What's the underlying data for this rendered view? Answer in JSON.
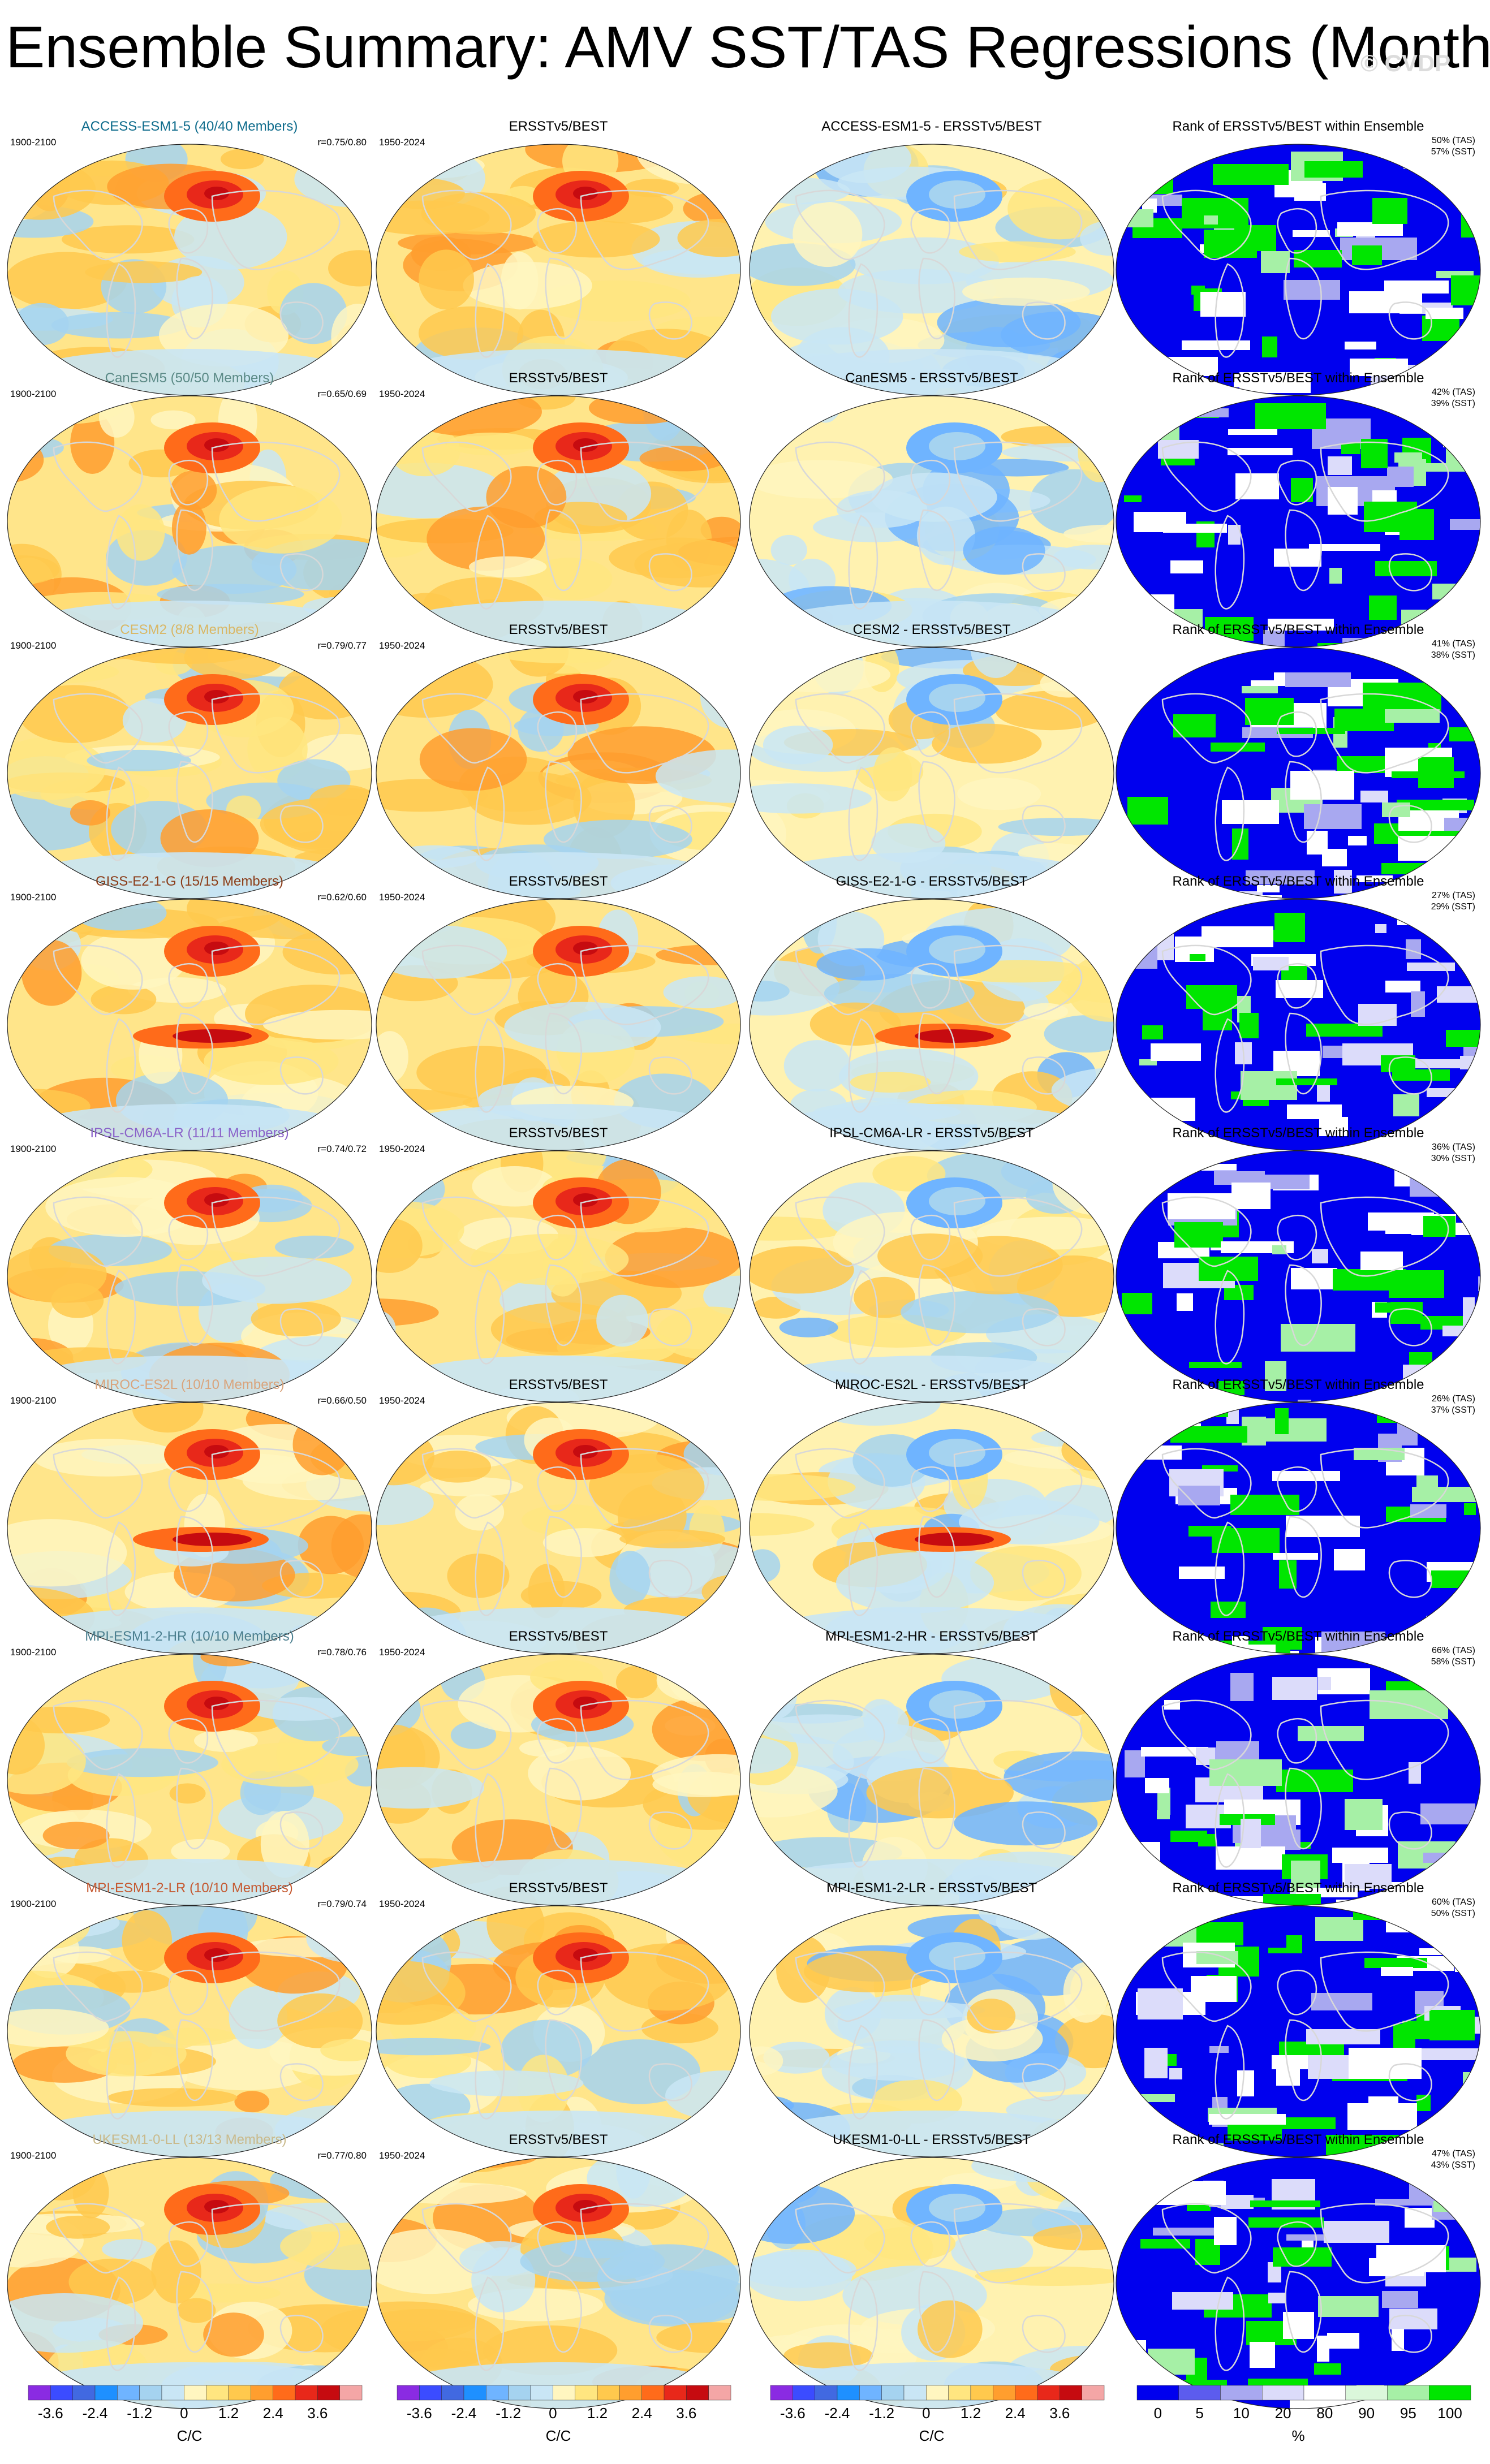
{
  "title": "Ensemble Summary: AMV SST/TAS Regressions (Monthly)",
  "watermark": "© CVDP",
  "colors": {
    "diverging": [
      "#8a2be2",
      "#3b4cff",
      "#4169e1",
      "#1e90ff",
      "#6fb4ff",
      "#a5d3f0",
      "#c9e6f5",
      "#fff6c0",
      "#ffe680",
      "#ffc94d",
      "#ff9e2e",
      "#ff6b1a",
      "#e8281a",
      "#c60b10",
      "#f4a6a6"
    ],
    "rank": [
      "#0000ee",
      "#5c5cee",
      "#a8a8f0",
      "#dcdcfa",
      "#ffffff",
      "#dbf7db",
      "#a6f0a6",
      "#00e600"
    ],
    "model_label_colors": [
      "#0f6c8c",
      "#5b8a86",
      "#d9b765",
      "#8b3d1a",
      "#8a63c9",
      "#d9a47c",
      "#4b7f8f",
      "#c55a32",
      "#c9b98a"
    ]
  },
  "rows": [
    {
      "model_label": "ACCESS-ESM1-5 (40/40 Members)",
      "model_years": "1900-2100",
      "r": "r=0.75/0.80",
      "obs_label": "ERSSTv5/BEST",
      "obs_years": "1950-2024",
      "diff_label": "ACCESS-ESM1-5 - ERSSTv5/BEST",
      "rank_label": "Rank of ERSSTv5/BEST within Ensemble",
      "rank_tas": "50% (TAS)",
      "rank_sst": "57% (SST)"
    },
    {
      "model_label": "CanESM5 (50/50 Members)",
      "model_years": "1900-2100",
      "r": "r=0.65/0.69",
      "obs_label": "ERSSTv5/BEST",
      "obs_years": "1950-2024",
      "diff_label": "CanESM5 - ERSSTv5/BEST",
      "rank_label": "Rank of ERSSTv5/BEST within Ensemble",
      "rank_tas": "42% (TAS)",
      "rank_sst": "39% (SST)"
    },
    {
      "model_label": "CESM2 (8/8 Members)",
      "model_years": "1900-2100",
      "r": "r=0.79/0.77",
      "obs_label": "ERSSTv5/BEST",
      "obs_years": "1950-2024",
      "diff_label": "CESM2 - ERSSTv5/BEST",
      "rank_label": "Rank of ERSSTv5/BEST within Ensemble",
      "rank_tas": "41% (TAS)",
      "rank_sst": "38% (SST)"
    },
    {
      "model_label": "GISS-E2-1-G (15/15 Members)",
      "model_years": "1900-2100",
      "r": "r=0.62/0.60",
      "obs_label": "ERSSTv5/BEST",
      "obs_years": "1950-2024",
      "diff_label": "GISS-E2-1-G - ERSSTv5/BEST",
      "rank_label": "Rank of ERSSTv5/BEST within Ensemble",
      "rank_tas": "27% (TAS)",
      "rank_sst": "29% (SST)"
    },
    {
      "model_label": "IPSL-CM6A-LR (11/11 Members)",
      "model_years": "1900-2100",
      "r": "r=0.74/0.72",
      "obs_label": "ERSSTv5/BEST",
      "obs_years": "1950-2024",
      "diff_label": "IPSL-CM6A-LR - ERSSTv5/BEST",
      "rank_label": "Rank of ERSSTv5/BEST within Ensemble",
      "rank_tas": "36% (TAS)",
      "rank_sst": "30% (SST)"
    },
    {
      "model_label": "MIROC-ES2L (10/10 Members)",
      "model_years": "1900-2100",
      "r": "r=0.66/0.50",
      "obs_label": "ERSSTv5/BEST",
      "obs_years": "1950-2024",
      "diff_label": "MIROC-ES2L - ERSSTv5/BEST",
      "rank_label": "Rank of ERSSTv5/BEST within Ensemble",
      "rank_tas": "26% (TAS)",
      "rank_sst": "37% (SST)"
    },
    {
      "model_label": "MPI-ESM1-2-HR (10/10 Members)",
      "model_years": "1900-2100",
      "r": "r=0.78/0.76",
      "obs_label": "ERSSTv5/BEST",
      "obs_years": "1950-2024",
      "diff_label": "MPI-ESM1-2-HR - ERSSTv5/BEST",
      "rank_label": "Rank of ERSSTv5/BEST within Ensemble",
      "rank_tas": "66% (TAS)",
      "rank_sst": "58% (SST)"
    },
    {
      "model_label": "MPI-ESM1-2-LR (10/10 Members)",
      "model_years": "1900-2100",
      "r": "r=0.79/0.74",
      "obs_label": "ERSSTv5/BEST",
      "obs_years": "1950-2024",
      "diff_label": "MPI-ESM1-2-LR - ERSSTv5/BEST",
      "rank_label": "Rank of ERSSTv5/BEST within Ensemble",
      "rank_tas": "60% (TAS)",
      "rank_sst": "50% (SST)"
    },
    {
      "model_label": "UKESM1-0-LL (13/13 Members)",
      "model_years": "1900-2100",
      "r": "r=0.77/0.80",
      "obs_label": "ERSSTv5/BEST",
      "obs_years": "1950-2024",
      "diff_label": "UKESM1-0-LL - ERSSTv5/BEST",
      "rank_label": "Rank of ERSSTv5/BEST within Ensemble",
      "rank_tas": "47% (TAS)",
      "rank_sst": "43% (SST)"
    }
  ],
  "colorbars": {
    "regression_ticks": [
      "-3.6",
      "-2.4",
      "-1.2",
      "0",
      "1.2",
      "2.4",
      "3.6"
    ],
    "regression_unit": "C/C",
    "rank_ticks": [
      "0",
      "5",
      "10",
      "20",
      "80",
      "90",
      "95",
      "100"
    ],
    "rank_unit": "%"
  },
  "chart_data": {
    "type": "heatmap",
    "title": "Ensemble Summary: AMV SST/TAS Regressions (Monthly)",
    "projection": "global map panels, 9 rows x 4 columns",
    "columns": [
      "model ensemble mean",
      "observations ERSSTv5/BEST",
      "model minus observations",
      "rank of observations within ensemble"
    ],
    "regression_levels": [
      -4.2,
      -3.6,
      -3.0,
      -2.4,
      -1.8,
      -1.2,
      -0.6,
      0,
      0.6,
      1.2,
      1.8,
      2.4,
      3.0,
      3.6,
      4.2
    ],
    "rank_levels": [
      0,
      5,
      10,
      20,
      80,
      90,
      95,
      100
    ],
    "units": {
      "regression": "C/C",
      "rank": "%"
    }
  }
}
